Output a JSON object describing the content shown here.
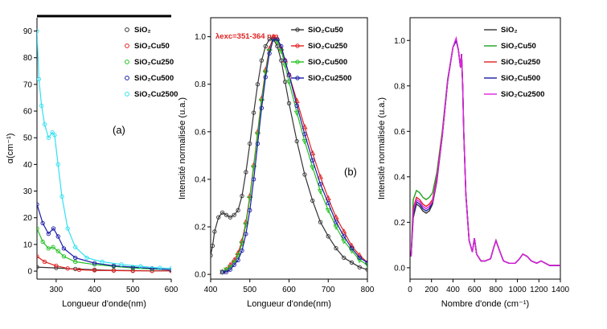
{
  "chart_data": [
    {
      "type": "line",
      "panel_label": "(a)",
      "xlabel": "Longueur d'onde(nm)",
      "ylabel": "α(cm⁻¹)",
      "xlim": [
        250,
        600
      ],
      "ylim": [
        -3,
        95
      ],
      "xticks": [
        "300",
        "400",
        "500",
        "600"
      ],
      "yticks": [
        "0",
        "10",
        "20",
        "30",
        "40",
        "50",
        "60",
        "70",
        "80",
        "90"
      ],
      "legend_position": "top-right",
      "series": [
        {
          "name": "SiO₂",
          "color": "#333333",
          "marker": "circle",
          "x": [
            250,
            300,
            350,
            400,
            450,
            500,
            550,
            600
          ],
          "y": [
            1.5,
            1.2,
            0.8,
            0.5,
            0.3,
            0.2,
            0.1,
            0.1
          ]
        },
        {
          "name": "SiO₂Cu50",
          "color": "#e02020",
          "marker": "circle",
          "x": [
            250,
            270,
            300,
            330,
            360,
            400,
            450,
            500,
            550,
            600
          ],
          "y": [
            5.5,
            3.5,
            2,
            1,
            0.5,
            0.3,
            0.2,
            0.1,
            0.1,
            0.1
          ]
        },
        {
          "name": "SiO₂Cu250",
          "color": "#20c020",
          "marker": "circle",
          "x": [
            250,
            265,
            280,
            292,
            305,
            320,
            350,
            400,
            450,
            500,
            550,
            600
          ],
          "y": [
            16,
            11,
            8.5,
            9,
            7.5,
            5.5,
            3.5,
            2.5,
            1.8,
            1.2,
            0.8,
            0.5
          ]
        },
        {
          "name": "SiO₂Cu500",
          "color": "#1a1aa8",
          "marker": "circle",
          "x": [
            250,
            265,
            280,
            293,
            305,
            320,
            350,
            400,
            450,
            500,
            550,
            600
          ],
          "y": [
            25,
            18,
            14,
            16,
            13,
            8.5,
            5,
            3,
            2,
            1.5,
            1,
            0.5
          ]
        },
        {
          "name": "SiO₂Cu2500",
          "color": "#30e0f0",
          "marker": "circle",
          "x": [
            250,
            255,
            262,
            270,
            280,
            290,
            296,
            305,
            315,
            330,
            350,
            380,
            420,
            470,
            520,
            570,
            600
          ],
          "y": [
            90,
            72,
            62,
            55,
            50,
            52,
            51,
            40,
            28,
            16,
            9,
            5,
            3.5,
            2.5,
            1.8,
            1.2,
            1
          ]
        }
      ]
    },
    {
      "type": "line",
      "panel_label": "(b)",
      "annotation": "λexc=351-364 nm",
      "annotation_color": "#e02020",
      "xlabel": "Longueur d'onde(nm)",
      "ylabel": "Intensité normalisée (u.a.)",
      "xlim": [
        400,
        800
      ],
      "ylim": [
        -0.02,
        1.08
      ],
      "xticks": [
        "400",
        "500",
        "600",
        "700",
        "800"
      ],
      "yticks": [
        "0.0",
        "0.2",
        "0.4",
        "0.6",
        "0.8",
        "1.0"
      ],
      "legend_position": "top-right",
      "series": [
        {
          "name": "SiO₂Cu50",
          "color": "#333333",
          "marker": "circle-open",
          "x": [
            400,
            405,
            410,
            420,
            430,
            440,
            450,
            460,
            470,
            480,
            490,
            500,
            510,
            520,
            530,
            540,
            550,
            560,
            570,
            580,
            590,
            600,
            620,
            640,
            660,
            680,
            700,
            720,
            740,
            760,
            780,
            800
          ],
          "y": [
            0.08,
            0.12,
            0.18,
            0.24,
            0.26,
            0.25,
            0.24,
            0.25,
            0.27,
            0.33,
            0.43,
            0.55,
            0.68,
            0.8,
            0.9,
            0.96,
            0.99,
            0.99,
            0.96,
            0.9,
            0.81,
            0.72,
            0.56,
            0.42,
            0.31,
            0.22,
            0.16,
            0.11,
            0.07,
            0.05,
            0.03,
            0.02
          ]
        },
        {
          "name": "SiO₂Cu250",
          "color": "#e02020",
          "marker": "triangle",
          "x": [
            430,
            440,
            450,
            460,
            470,
            480,
            490,
            500,
            510,
            520,
            530,
            540,
            550,
            560,
            570,
            580,
            590,
            600,
            620,
            640,
            660,
            680,
            700,
            720,
            740,
            760,
            780,
            800
          ],
          "y": [
            0.01,
            0.02,
            0.04,
            0.06,
            0.09,
            0.14,
            0.22,
            0.33,
            0.46,
            0.6,
            0.74,
            0.86,
            0.95,
            1.0,
            0.99,
            0.95,
            0.9,
            0.84,
            0.73,
            0.62,
            0.51,
            0.41,
            0.32,
            0.24,
            0.18,
            0.12,
            0.08,
            0.05
          ]
        },
        {
          "name": "SiO₂Cu500",
          "color": "#20c020",
          "marker": "triangle-down",
          "x": [
            430,
            440,
            450,
            460,
            470,
            480,
            490,
            500,
            510,
            520,
            530,
            540,
            550,
            560,
            570,
            580,
            590,
            600,
            620,
            640,
            660,
            680,
            700,
            720,
            740,
            760,
            780,
            800
          ],
          "y": [
            0.01,
            0.02,
            0.03,
            0.05,
            0.08,
            0.13,
            0.21,
            0.32,
            0.45,
            0.59,
            0.73,
            0.85,
            0.94,
            0.99,
            0.98,
            0.94,
            0.88,
            0.81,
            0.68,
            0.56,
            0.45,
            0.35,
            0.27,
            0.2,
            0.14,
            0.1,
            0.06,
            0.04
          ]
        },
        {
          "name": "SiO₂Cu2500",
          "color": "#1a1aa8",
          "marker": "circle-open",
          "x": [
            430,
            440,
            450,
            460,
            470,
            480,
            490,
            500,
            510,
            520,
            530,
            540,
            550,
            560,
            570,
            580,
            590,
            600,
            620,
            640,
            660,
            680,
            700,
            720,
            740,
            760,
            780,
            800
          ],
          "y": [
            0.01,
            0.01,
            0.02,
            0.04,
            0.06,
            0.1,
            0.17,
            0.27,
            0.4,
            0.55,
            0.7,
            0.83,
            0.93,
            0.99,
            0.99,
            0.96,
            0.9,
            0.84,
            0.71,
            0.59,
            0.48,
            0.38,
            0.3,
            0.22,
            0.16,
            0.11,
            0.07,
            0.05
          ]
        }
      ]
    },
    {
      "type": "line",
      "panel_label": "",
      "xlabel": "Nombre d'onde (cm⁻¹)",
      "ylabel": "Intensité normalisée (u.a.)",
      "xlim": [
        0,
        1400
      ],
      "ylim": [
        -0.05,
        1.1
      ],
      "xticks": [
        "0",
        "200",
        "400",
        "600",
        "800",
        "1000",
        "1200",
        "1400"
      ],
      "yticks": [
        "0.0",
        "0.2",
        "0.4",
        "0.6",
        "0.8",
        "1.0"
      ],
      "legend_position": "top-right",
      "series": [
        {
          "name": "SiO₂",
          "color": "#333333",
          "x": [
            10,
            30,
            60,
            90,
            120,
            150,
            180,
            210,
            250,
            300,
            350,
            400,
            430,
            450,
            470,
            480,
            490,
            500,
            520,
            550,
            580,
            600,
            620,
            660,
            700,
            750,
            780,
            800,
            830,
            870,
            920,
            980,
            1020,
            1050,
            1090,
            1130,
            1180,
            1220,
            1260,
            1300,
            1350,
            1400
          ],
          "y": [
            0.05,
            0.22,
            0.28,
            0.27,
            0.25,
            0.24,
            0.25,
            0.28,
            0.38,
            0.58,
            0.82,
            0.97,
            1.0,
            0.96,
            0.88,
            0.94,
            0.8,
            0.6,
            0.32,
            0.12,
            0.07,
            0.13,
            0.06,
            0.03,
            0.03,
            0.04,
            0.09,
            0.12,
            0.08,
            0.03,
            0.02,
            0.02,
            0.04,
            0.06,
            0.05,
            0.03,
            0.02,
            0.03,
            0.02,
            0.01,
            0.01,
            0.01
          ]
        },
        {
          "name": "SiO₂Cu50",
          "color": "#20a020",
          "x": [
            10,
            30,
            60,
            90,
            120,
            150,
            180,
            210,
            250,
            300,
            350,
            400,
            430,
            450,
            470,
            480,
            490,
            500,
            520,
            550,
            580,
            600,
            620,
            660,
            700,
            750,
            780,
            800,
            830,
            870,
            920,
            980,
            1020,
            1050,
            1090,
            1130,
            1180,
            1220,
            1260,
            1300,
            1350,
            1400
          ],
          "y": [
            0.05,
            0.3,
            0.34,
            0.33,
            0.31,
            0.3,
            0.31,
            0.33,
            0.42,
            0.6,
            0.83,
            0.97,
            1.0,
            0.96,
            0.88,
            0.94,
            0.8,
            0.6,
            0.32,
            0.12,
            0.07,
            0.13,
            0.06,
            0.03,
            0.03,
            0.04,
            0.09,
            0.12,
            0.08,
            0.03,
            0.02,
            0.02,
            0.04,
            0.06,
            0.05,
            0.03,
            0.02,
            0.03,
            0.02,
            0.01,
            0.01,
            0.01
          ]
        },
        {
          "name": "SiO₂Cu250",
          "color": "#e02020",
          "x": [
            10,
            30,
            60,
            90,
            120,
            150,
            180,
            210,
            250,
            300,
            350,
            400,
            430,
            450,
            470,
            480,
            490,
            500,
            520,
            550,
            580,
            600,
            620,
            660,
            700,
            750,
            780,
            800,
            830,
            870,
            920,
            980,
            1020,
            1050,
            1090,
            1130,
            1180,
            1220,
            1260,
            1300,
            1350,
            1400
          ],
          "y": [
            0.05,
            0.26,
            0.31,
            0.3,
            0.28,
            0.27,
            0.28,
            0.3,
            0.4,
            0.59,
            0.82,
            0.97,
            1.0,
            0.96,
            0.88,
            0.94,
            0.8,
            0.6,
            0.32,
            0.12,
            0.07,
            0.13,
            0.06,
            0.03,
            0.03,
            0.04,
            0.09,
            0.12,
            0.08,
            0.03,
            0.02,
            0.02,
            0.04,
            0.06,
            0.05,
            0.03,
            0.02,
            0.03,
            0.02,
            0.01,
            0.01,
            0.01
          ]
        },
        {
          "name": "SiO₂Cu500",
          "color": "#1a1aa8",
          "x": [
            10,
            30,
            60,
            90,
            120,
            150,
            180,
            210,
            250,
            300,
            350,
            400,
            430,
            450,
            470,
            480,
            490,
            500,
            520,
            550,
            580,
            600,
            620,
            660,
            700,
            750,
            780,
            800,
            830,
            870,
            920,
            980,
            1020,
            1050,
            1090,
            1130,
            1180,
            1220,
            1260,
            1300,
            1350,
            1400
          ],
          "y": [
            0.05,
            0.24,
            0.29,
            0.28,
            0.26,
            0.25,
            0.26,
            0.29,
            0.39,
            0.58,
            0.82,
            0.97,
            1.0,
            0.96,
            0.88,
            0.94,
            0.8,
            0.6,
            0.32,
            0.12,
            0.07,
            0.13,
            0.06,
            0.03,
            0.03,
            0.04,
            0.09,
            0.12,
            0.08,
            0.03,
            0.02,
            0.02,
            0.04,
            0.06,
            0.05,
            0.03,
            0.02,
            0.03,
            0.02,
            0.01,
            0.01,
            0.01
          ]
        },
        {
          "name": "SiO₂Cu2500",
          "color": "#e020e0",
          "x": [
            10,
            30,
            60,
            90,
            120,
            150,
            180,
            210,
            250,
            300,
            350,
            400,
            430,
            450,
            470,
            480,
            490,
            500,
            520,
            550,
            580,
            600,
            620,
            660,
            700,
            750,
            780,
            800,
            830,
            870,
            920,
            980,
            1020,
            1050,
            1090,
            1130,
            1180,
            1220,
            1260,
            1300,
            1350,
            1400
          ],
          "y": [
            0.05,
            0.25,
            0.3,
            0.29,
            0.27,
            0.26,
            0.27,
            0.29,
            0.39,
            0.58,
            0.82,
            0.97,
            1.01,
            0.96,
            0.88,
            0.94,
            0.8,
            0.6,
            0.32,
            0.12,
            0.07,
            0.13,
            0.06,
            0.03,
            0.03,
            0.04,
            0.09,
            0.12,
            0.08,
            0.03,
            0.02,
            0.02,
            0.04,
            0.06,
            0.05,
            0.03,
            0.02,
            0.03,
            0.02,
            0.01,
            0.01,
            0.01
          ]
        }
      ]
    }
  ]
}
